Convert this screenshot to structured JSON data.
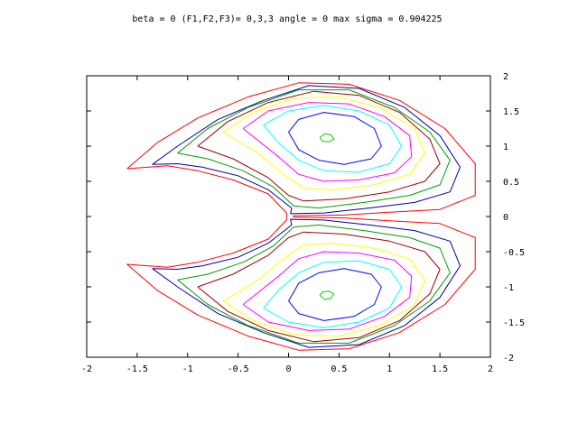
{
  "chart_data": {
    "type": "contour",
    "title": "beta = 0  (F1,F2,F3)= 0,3,3  angle = 0  max sigma = 0.904225",
    "xlabel": "",
    "ylabel": "",
    "xlim": [
      -2,
      2
    ],
    "ylim": [
      -2,
      2
    ],
    "x_ticks": [
      -2,
      -1.5,
      -1,
      -0.5,
      0,
      0.5,
      1,
      1.5,
      2
    ],
    "y_ticks": [
      2,
      1.5,
      1,
      0.5,
      0,
      -0.5,
      -1,
      -1.5,
      -2
    ],
    "x_tick_labels": [
      "-2",
      "-1.5",
      "-1",
      "-0.5",
      "0",
      "0.5",
      "1",
      "1.5",
      "2"
    ],
    "y_tick_labels": [
      "2",
      "1.5",
      "1",
      "0.5",
      "0",
      "-0.5",
      "-1",
      "-1.5",
      "-2"
    ],
    "grid": false,
    "legend": "none",
    "colors": [
      "#ff0000",
      "#0000a0",
      "#00a000",
      "#a00000",
      "#ffff00",
      "#ff00ff",
      "#00ffff",
      "#0000ff",
      "#00d000"
    ],
    "series": [
      {
        "color": "#ff0000",
        "points": [
          [
            -1.6,
            0.68
          ],
          [
            -1.3,
            1.05
          ],
          [
            -0.9,
            1.4
          ],
          [
            -0.4,
            1.7
          ],
          [
            0.1,
            1.9
          ],
          [
            0.6,
            1.88
          ],
          [
            1.1,
            1.65
          ],
          [
            1.55,
            1.25
          ],
          [
            1.85,
            0.75
          ],
          [
            1.85,
            0.3
          ],
          [
            1.5,
            0.1
          ],
          [
            1.0,
            0.06
          ],
          [
            0.55,
            0.02
          ],
          [
            0.05,
            0.01
          ],
          [
            0.05,
            -0.01
          ],
          [
            0.55,
            -0.02
          ],
          [
            1.0,
            -0.06
          ],
          [
            1.5,
            -0.1
          ],
          [
            1.85,
            -0.3
          ],
          [
            1.85,
            -0.75
          ],
          [
            1.55,
            -1.25
          ],
          [
            1.1,
            -1.65
          ],
          [
            0.6,
            -1.88
          ],
          [
            0.1,
            -1.9
          ],
          [
            -0.4,
            -1.7
          ],
          [
            -0.9,
            -1.4
          ],
          [
            -1.3,
            -1.05
          ],
          [
            -1.6,
            -0.68
          ],
          [
            -1.2,
            -0.72
          ],
          [
            -0.9,
            -0.65
          ],
          [
            -0.55,
            -0.52
          ],
          [
            -0.2,
            -0.32
          ],
          [
            -0.02,
            -0.05
          ],
          [
            -0.02,
            0.05
          ],
          [
            -0.2,
            0.32
          ],
          [
            -0.55,
            0.52
          ],
          [
            -0.9,
            0.65
          ],
          [
            -1.2,
            0.72
          ],
          [
            -1.6,
            0.68
          ]
        ]
      },
      {
        "color": "#0000a0",
        "points": [
          [
            -1.35,
            0.74
          ],
          [
            -1.1,
            1.0
          ],
          [
            -0.7,
            1.38
          ],
          [
            -0.25,
            1.65
          ],
          [
            0.2,
            1.86
          ],
          [
            0.7,
            1.82
          ],
          [
            1.15,
            1.55
          ],
          [
            1.5,
            1.15
          ],
          [
            1.7,
            0.7
          ],
          [
            1.6,
            0.35
          ],
          [
            1.25,
            0.2
          ],
          [
            0.8,
            0.12
          ],
          [
            0.35,
            0.05
          ],
          [
            0.02,
            0.04
          ],
          [
            0.03,
            0.12
          ],
          [
            -0.2,
            0.38
          ],
          [
            -0.5,
            0.58
          ],
          [
            -0.85,
            0.7
          ],
          [
            -1.1,
            0.75
          ],
          [
            -1.35,
            0.74
          ]
        ]
      },
      {
        "color": "#0000a0",
        "points": [
          [
            -1.35,
            -0.74
          ],
          [
            -1.1,
            -1.0
          ],
          [
            -0.7,
            -1.38
          ],
          [
            -0.25,
            -1.65
          ],
          [
            0.2,
            -1.86
          ],
          [
            0.7,
            -1.82
          ],
          [
            1.15,
            -1.55
          ],
          [
            1.5,
            -1.15
          ],
          [
            1.7,
            -0.7
          ],
          [
            1.6,
            -0.35
          ],
          [
            1.25,
            -0.2
          ],
          [
            0.8,
            -0.12
          ],
          [
            0.35,
            -0.05
          ],
          [
            0.02,
            -0.04
          ],
          [
            0.03,
            -0.12
          ],
          [
            -0.2,
            -0.38
          ],
          [
            -0.5,
            -0.58
          ],
          [
            -0.85,
            -0.7
          ],
          [
            -1.1,
            -0.75
          ],
          [
            -1.35,
            -0.74
          ]
        ]
      },
      {
        "color": "#00a000",
        "points": [
          [
            -1.1,
            0.9
          ],
          [
            -0.8,
            1.25
          ],
          [
            -0.4,
            1.55
          ],
          [
            0.1,
            1.8
          ],
          [
            0.6,
            1.8
          ],
          [
            1.05,
            1.55
          ],
          [
            1.4,
            1.2
          ],
          [
            1.6,
            0.8
          ],
          [
            1.5,
            0.45
          ],
          [
            1.2,
            0.3
          ],
          [
            0.75,
            0.2
          ],
          [
            0.3,
            0.12
          ],
          [
            0.05,
            0.15
          ],
          [
            -0.15,
            0.42
          ],
          [
            -0.45,
            0.65
          ],
          [
            -0.8,
            0.82
          ],
          [
            -1.1,
            0.9
          ]
        ]
      },
      {
        "color": "#00a000",
        "points": [
          [
            -1.1,
            -0.9
          ],
          [
            -0.8,
            -1.25
          ],
          [
            -0.4,
            -1.55
          ],
          [
            0.1,
            -1.8
          ],
          [
            0.6,
            -1.8
          ],
          [
            1.05,
            -1.55
          ],
          [
            1.4,
            -1.2
          ],
          [
            1.6,
            -0.8
          ],
          [
            1.5,
            -0.45
          ],
          [
            1.2,
            -0.3
          ],
          [
            0.75,
            -0.2
          ],
          [
            0.3,
            -0.12
          ],
          [
            0.05,
            -0.15
          ],
          [
            -0.15,
            -0.42
          ],
          [
            -0.45,
            -0.65
          ],
          [
            -0.8,
            -0.82
          ],
          [
            -1.1,
            -0.9
          ]
        ]
      },
      {
        "color": "#a00000",
        "points": [
          [
            -0.9,
            1.0
          ],
          [
            -0.6,
            1.35
          ],
          [
            -0.2,
            1.62
          ],
          [
            0.25,
            1.78
          ],
          [
            0.7,
            1.72
          ],
          [
            1.1,
            1.48
          ],
          [
            1.4,
            1.1
          ],
          [
            1.5,
            0.75
          ],
          [
            1.35,
            0.5
          ],
          [
            1.0,
            0.35
          ],
          [
            0.55,
            0.25
          ],
          [
            0.15,
            0.22
          ],
          [
            0.0,
            0.3
          ],
          [
            -0.2,
            0.55
          ],
          [
            -0.55,
            0.82
          ],
          [
            -0.9,
            1.0
          ]
        ]
      },
      {
        "color": "#a00000",
        "points": [
          [
            -0.9,
            -1.0
          ],
          [
            -0.6,
            -1.35
          ],
          [
            -0.2,
            -1.62
          ],
          [
            0.25,
            -1.78
          ],
          [
            0.7,
            -1.72
          ],
          [
            1.1,
            -1.48
          ],
          [
            1.4,
            -1.1
          ],
          [
            1.5,
            -0.75
          ],
          [
            1.35,
            -0.5
          ],
          [
            1.0,
            -0.35
          ],
          [
            0.55,
            -0.25
          ],
          [
            0.15,
            -0.22
          ],
          [
            0.0,
            -0.3
          ],
          [
            -0.2,
            -0.55
          ],
          [
            -0.55,
            -0.82
          ],
          [
            -0.9,
            -1.0
          ]
        ]
      },
      {
        "color": "#ffff00",
        "points": [
          [
            -0.65,
            1.2
          ],
          [
            -0.35,
            1.48
          ],
          [
            0.05,
            1.68
          ],
          [
            0.5,
            1.7
          ],
          [
            0.9,
            1.55
          ],
          [
            1.25,
            1.25
          ],
          [
            1.35,
            0.9
          ],
          [
            1.2,
            0.6
          ],
          [
            0.85,
            0.45
          ],
          [
            0.45,
            0.38
          ],
          [
            0.15,
            0.4
          ],
          [
            -0.05,
            0.6
          ],
          [
            -0.3,
            0.9
          ],
          [
            -0.65,
            1.2
          ]
        ]
      },
      {
        "color": "#ffff00",
        "points": [
          [
            -0.65,
            -1.2
          ],
          [
            -0.35,
            -1.48
          ],
          [
            0.05,
            -1.68
          ],
          [
            0.5,
            -1.7
          ],
          [
            0.9,
            -1.55
          ],
          [
            1.25,
            -1.25
          ],
          [
            1.35,
            -0.9
          ],
          [
            1.2,
            -0.6
          ],
          [
            0.85,
            -0.45
          ],
          [
            0.45,
            -0.38
          ],
          [
            0.15,
            -0.4
          ],
          [
            -0.05,
            -0.6
          ],
          [
            -0.3,
            -0.9
          ],
          [
            -0.65,
            -1.2
          ]
        ]
      },
      {
        "color": "#ff00ff",
        "points": [
          [
            -0.45,
            1.25
          ],
          [
            -0.2,
            1.5
          ],
          [
            0.2,
            1.62
          ],
          [
            0.6,
            1.6
          ],
          [
            0.95,
            1.42
          ],
          [
            1.2,
            1.15
          ],
          [
            1.22,
            0.85
          ],
          [
            1.05,
            0.62
          ],
          [
            0.7,
            0.52
          ],
          [
            0.35,
            0.5
          ],
          [
            0.1,
            0.6
          ],
          [
            -0.1,
            0.85
          ],
          [
            -0.45,
            1.25
          ]
        ]
      },
      {
        "color": "#ff00ff",
        "points": [
          [
            -0.45,
            -1.25
          ],
          [
            -0.2,
            -1.5
          ],
          [
            0.2,
            -1.62
          ],
          [
            0.6,
            -1.6
          ],
          [
            0.95,
            -1.42
          ],
          [
            1.2,
            -1.15
          ],
          [
            1.22,
            -0.85
          ],
          [
            1.05,
            -0.62
          ],
          [
            0.7,
            -0.52
          ],
          [
            0.35,
            -0.5
          ],
          [
            0.1,
            -0.6
          ],
          [
            -0.1,
            -0.85
          ],
          [
            -0.45,
            -1.25
          ]
        ]
      },
      {
        "color": "#00ffff",
        "points": [
          [
            -0.25,
            1.3
          ],
          [
            0.0,
            1.5
          ],
          [
            0.35,
            1.58
          ],
          [
            0.7,
            1.5
          ],
          [
            1.0,
            1.3
          ],
          [
            1.12,
            1.0
          ],
          [
            1.0,
            0.75
          ],
          [
            0.7,
            0.63
          ],
          [
            0.35,
            0.65
          ],
          [
            0.1,
            0.8
          ],
          [
            -0.1,
            1.05
          ],
          [
            -0.25,
            1.3
          ]
        ]
      },
      {
        "color": "#00ffff",
        "points": [
          [
            -0.25,
            -1.3
          ],
          [
            0.0,
            -1.5
          ],
          [
            0.35,
            -1.58
          ],
          [
            0.7,
            -1.5
          ],
          [
            1.0,
            -1.3
          ],
          [
            1.12,
            -1.0
          ],
          [
            1.0,
            -0.75
          ],
          [
            0.7,
            -0.63
          ],
          [
            0.35,
            -0.65
          ],
          [
            0.1,
            -0.8
          ],
          [
            -0.1,
            -1.05
          ],
          [
            -0.25,
            -1.3
          ]
        ]
      },
      {
        "color": "#0000ff",
        "points": [
          [
            0.0,
            1.2
          ],
          [
            0.1,
            1.38
          ],
          [
            0.35,
            1.48
          ],
          [
            0.65,
            1.42
          ],
          [
            0.85,
            1.25
          ],
          [
            0.92,
            1.0
          ],
          [
            0.82,
            0.82
          ],
          [
            0.55,
            0.74
          ],
          [
            0.3,
            0.8
          ],
          [
            0.1,
            0.95
          ],
          [
            0.0,
            1.2
          ]
        ]
      },
      {
        "color": "#0000ff",
        "points": [
          [
            0.0,
            -1.2
          ],
          [
            0.1,
            -1.38
          ],
          [
            0.35,
            -1.48
          ],
          [
            0.65,
            -1.42
          ],
          [
            0.85,
            -1.25
          ],
          [
            0.92,
            -1.0
          ],
          [
            0.82,
            -0.82
          ],
          [
            0.55,
            -0.74
          ],
          [
            0.3,
            -0.8
          ],
          [
            0.1,
            -0.95
          ],
          [
            0.0,
            -1.2
          ]
        ]
      },
      {
        "color": "#00d000",
        "points": [
          [
            0.31,
            1.12
          ],
          [
            0.36,
            1.18
          ],
          [
            0.42,
            1.16
          ],
          [
            0.45,
            1.1
          ],
          [
            0.4,
            1.06
          ],
          [
            0.34,
            1.07
          ],
          [
            0.31,
            1.12
          ]
        ]
      },
      {
        "color": "#00d000",
        "points": [
          [
            0.31,
            -1.12
          ],
          [
            0.36,
            -1.18
          ],
          [
            0.42,
            -1.16
          ],
          [
            0.45,
            -1.1
          ],
          [
            0.4,
            -1.06
          ],
          [
            0.34,
            -1.07
          ],
          [
            0.31,
            -1.12
          ]
        ]
      }
    ]
  }
}
